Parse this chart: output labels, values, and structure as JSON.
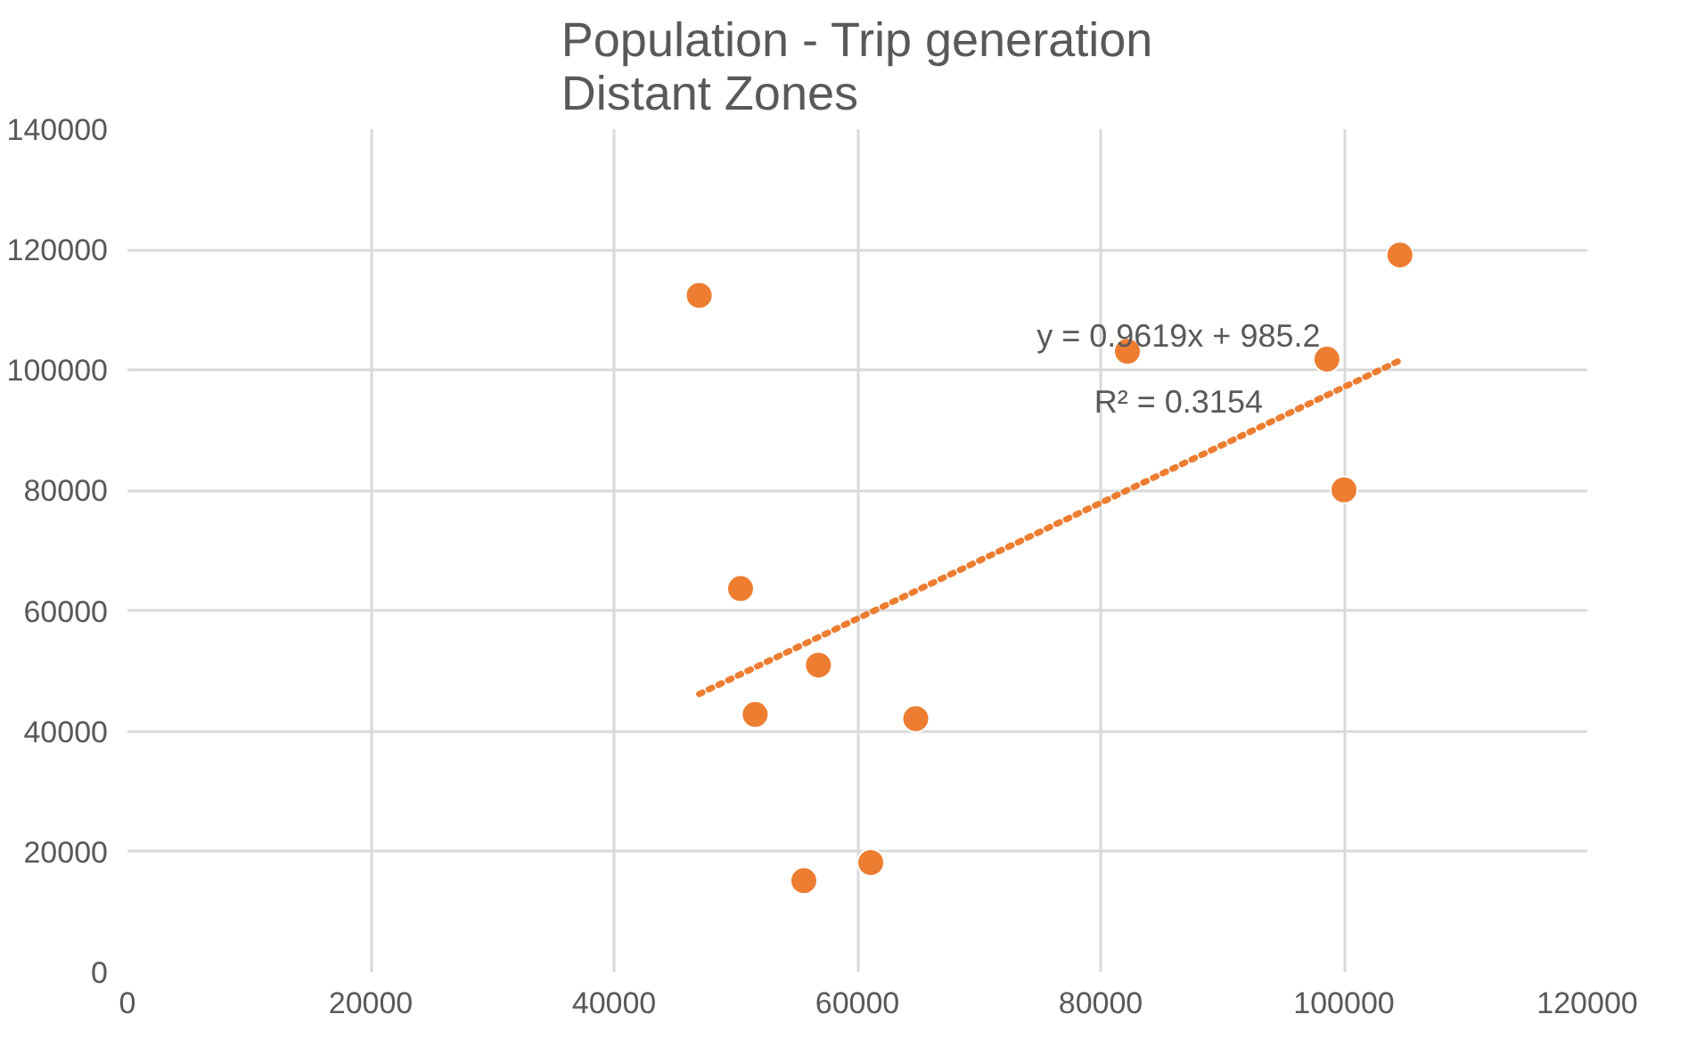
{
  "chart_data": {
    "type": "scatter",
    "title": "Population - Trip generation\nDistant Zones",
    "series": [
      {
        "color": "#ed7d31",
        "marker": "circle",
        "x": [
          47000,
          50400,
          51600,
          56800,
          64800,
          55600,
          61100,
          82200,
          98600,
          100000,
          104600
        ],
        "values": [
          112400,
          63700,
          42800,
          51000,
          42100,
          15200,
          18200,
          103100,
          101800,
          80100,
          119100
        ]
      },
      {
        "type": "line",
        "color": "#ed7d31",
        "marker": "none",
        "line_style": "dotted",
        "x": [
          47000,
          104600
        ],
        "values": [
          46200,
          101600
        ]
      }
    ],
    "annotations": [
      "y = 0.9619x + 985.2",
      "R² = 0.3154"
    ],
    "xlim": [
      0,
      120000
    ],
    "xticks": [
      0,
      20000,
      40000,
      60000,
      80000,
      100000,
      120000
    ],
    "ylim": [
      0,
      140000
    ],
    "yticks": [
      0,
      20000,
      40000,
      60000,
      80000,
      100000,
      120000,
      140000
    ],
    "grid": true
  }
}
